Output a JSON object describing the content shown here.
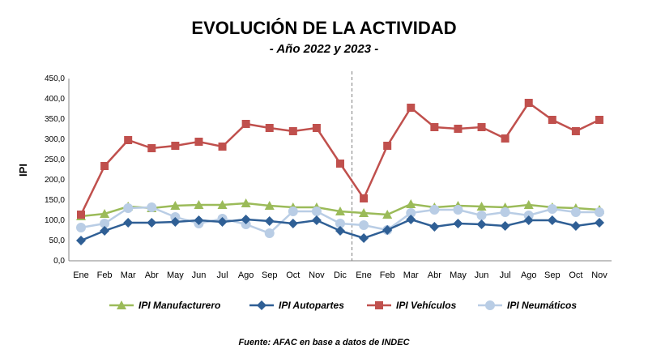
{
  "chart_data": {
    "type": "line",
    "title": "EVOLUCIÓN DE LA ACTIVIDAD",
    "subtitle": "- Año 2022 y 2023 -",
    "ylabel": "IPI",
    "xlabel": "",
    "ylim": [
      0,
      450
    ],
    "yticks": [
      "0,0",
      "50,0",
      "100,0",
      "150,0",
      "200,0",
      "250,0",
      "300,0",
      "350,0",
      "400,0",
      "450,0"
    ],
    "categories": [
      "Ene",
      "Feb",
      "Mar",
      "Abr",
      "May",
      "Jun",
      "Jul",
      "Ago",
      "Sep",
      "Oct",
      "Nov",
      "Dic",
      "Ene",
      "Feb",
      "Mar",
      "Abr",
      "May",
      "Jun",
      "Jul",
      "Ago",
      "Sep",
      "Oct",
      "Nov"
    ],
    "year_divider_after_index": 11,
    "grid": false,
    "legend": "bottom",
    "series": [
      {
        "name": "IPI Manufacturero",
        "color": "#9bbb59",
        "marker": "triangle",
        "values": [
          110,
          116,
          134,
          130,
          136,
          138,
          138,
          142,
          136,
          132,
          132,
          122,
          118,
          114,
          140,
          132,
          136,
          134,
          132,
          138,
          132,
          130,
          126
        ]
      },
      {
        "name": "IPI Autopartes",
        "color": "#2f5f95",
        "marker": "diamond",
        "values": [
          50,
          74,
          94,
          94,
          96,
          100,
          96,
          102,
          98,
          92,
          100,
          74,
          56,
          76,
          102,
          84,
          92,
          90,
          86,
          100,
          100,
          86,
          94
        ]
      },
      {
        "name": "IPI Vehículos",
        "color": "#c0504d",
        "marker": "square",
        "values": [
          114,
          234,
          298,
          278,
          284,
          294,
          282,
          338,
          328,
          320,
          328,
          240,
          154,
          284,
          378,
          330,
          326,
          330,
          302,
          390,
          348,
          320,
          348
        ]
      },
      {
        "name": "IPI Neumáticos",
        "color": "#b9cde5",
        "marker": "circle",
        "values": [
          82,
          92,
          130,
          132,
          108,
          92,
          104,
          90,
          68,
          122,
          122,
          92,
          88,
          76,
          118,
          126,
          126,
          112,
          120,
          112,
          128,
          120,
          120
        ]
      }
    ]
  },
  "source": "Fuente: AFAC en base a datos de INDEC"
}
